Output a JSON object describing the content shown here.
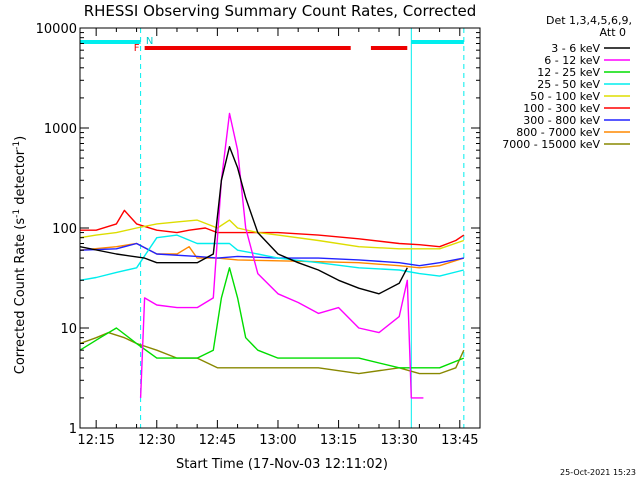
{
  "chart_data": {
    "type": "line",
    "title": "RHESSI Observing Summary Count Rates, Corrected",
    "xlabel": "Start Time (17-Nov-03 12:11:02)",
    "ylabel": "Corrected Count Rate (s",
    "ylabel_sup1": "-1",
    "ylabel_mid": " detector",
    "ylabel_sup2": "-1",
    "ylabel_end": ")",
    "timestamp": "25-Oct-2021 15:23",
    "y_scale": "log",
    "ylim": [
      1,
      10000
    ],
    "xlim": [
      "12:11",
      "13:50"
    ],
    "x_ticks": [
      "12:15",
      "12:30",
      "12:45",
      "13:00",
      "13:15",
      "13:30",
      "13:45"
    ],
    "y_ticks": [
      "1",
      "10",
      "100",
      "1000",
      "10000"
    ],
    "legend_header": [
      "Det 1,3,4,5,6,9,",
      "Att 0"
    ],
    "legend_position": "right",
    "flags": {
      "F_label": "F",
      "N_label": "N",
      "night_intervals": [
        [
          "12:11",
          "12:26"
        ],
        [
          "13:33",
          "13:46"
        ]
      ],
      "flare_intervals": [
        [
          "12:27",
          "13:18"
        ],
        [
          "13:23",
          "13:32"
        ]
      ]
    },
    "series": [
      {
        "name": "3 - 6 keV",
        "color": "#000000",
        "x": [
          "12:11",
          "12:20",
          "12:27",
          "12:30",
          "12:35",
          "12:40",
          "12:44",
          "12:46",
          "12:48",
          "12:50",
          "12:52",
          "12:55",
          "13:00",
          "13:05",
          "13:10",
          "13:15",
          "13:20",
          "13:25",
          "13:30",
          "13:32"
        ],
        "y": [
          65,
          55,
          50,
          45,
          45,
          45,
          55,
          300,
          650,
          400,
          200,
          90,
          55,
          45,
          38,
          30,
          25,
          22,
          28,
          40
        ]
      },
      {
        "name": "6 - 12 keV",
        "color": "#ff00ff",
        "x": [
          "12:26",
          "12:27",
          "12:30",
          "12:35",
          "12:40",
          "12:44",
          "12:46",
          "12:48",
          "12:50",
          "12:52",
          "12:55",
          "13:00",
          "13:05",
          "13:10",
          "13:15",
          "13:20",
          "13:25",
          "13:30",
          "13:32",
          "13:33",
          "13:36"
        ],
        "y": [
          2,
          20,
          17,
          16,
          16,
          20,
          300,
          1400,
          600,
          100,
          35,
          22,
          18,
          14,
          16,
          10,
          9,
          13,
          30,
          2,
          2
        ]
      },
      {
        "name": "12 - 25 keV",
        "color": "#00dd00",
        "x": [
          "12:11",
          "12:16",
          "12:20",
          "12:25",
          "12:30",
          "12:35",
          "12:40",
          "12:44",
          "12:46",
          "12:48",
          "12:50",
          "12:52",
          "12:55",
          "13:00",
          "13:10",
          "13:20",
          "13:30",
          "13:40",
          "13:46"
        ],
        "y": [
          6,
          8,
          10,
          7,
          5,
          5,
          5,
          6,
          20,
          40,
          20,
          8,
          6,
          5,
          5,
          5,
          4,
          4,
          5
        ]
      },
      {
        "name": "25 - 50 keV",
        "color": "#00eeee",
        "x": [
          "12:11",
          "12:15",
          "12:20",
          "12:25",
          "12:30",
          "12:35",
          "12:40",
          "12:45",
          "12:48",
          "12:50",
          "12:55",
          "13:00",
          "13:10",
          "13:20",
          "13:30",
          "13:35",
          "13:40",
          "13:46"
        ],
        "y": [
          30,
          32,
          36,
          40,
          80,
          85,
          70,
          70,
          70,
          60,
          55,
          50,
          45,
          40,
          38,
          35,
          33,
          38
        ]
      },
      {
        "name": "50 - 100 keV",
        "color": "#dddd00",
        "x": [
          "12:11",
          "12:15",
          "12:20",
          "12:25",
          "12:30",
          "12:35",
          "12:40",
          "12:45",
          "12:48",
          "12:50",
          "12:55",
          "13:00",
          "13:10",
          "13:20",
          "13:30",
          "13:35",
          "13:40",
          "13:46"
        ],
        "y": [
          80,
          85,
          90,
          100,
          110,
          115,
          120,
          100,
          120,
          100,
          90,
          85,
          75,
          65,
          62,
          62,
          62,
          75
        ]
      },
      {
        "name": "100 - 300 keV",
        "color": "#ff0000",
        "x": [
          "12:11",
          "12:15",
          "12:20",
          "12:22",
          "12:25",
          "12:30",
          "12:35",
          "12:38",
          "12:42",
          "12:45",
          "12:50",
          "13:00",
          "13:10",
          "13:20",
          "13:30",
          "13:35",
          "13:40",
          "13:44",
          "13:46"
        ],
        "y": [
          95,
          95,
          110,
          150,
          110,
          95,
          90,
          95,
          100,
          90,
          90,
          90,
          85,
          78,
          70,
          68,
          65,
          75,
          85
        ]
      },
      {
        "name": "300 - 800 keV",
        "color": "#2222ff",
        "x": [
          "12:11",
          "12:20",
          "12:25",
          "12:30",
          "12:40",
          "12:45",
          "12:50",
          "13:00",
          "13:10",
          "13:20",
          "13:30",
          "13:35",
          "13:40",
          "13:46"
        ],
        "y": [
          60,
          62,
          70,
          55,
          52,
          50,
          52,
          50,
          50,
          48,
          45,
          42,
          45,
          50
        ]
      },
      {
        "name": "800 - 7000 keV",
        "color": "#ff8800",
        "x": [
          "12:11",
          "12:20",
          "12:25",
          "12:30",
          "12:35",
          "12:38",
          "12:40",
          "12:45",
          "12:50",
          "13:00",
          "13:10",
          "13:20",
          "13:30",
          "13:35",
          "13:40",
          "13:46"
        ],
        "y": [
          60,
          65,
          70,
          55,
          55,
          65,
          50,
          50,
          48,
          47,
          46,
          45,
          42,
          40,
          42,
          50
        ]
      },
      {
        "name": "7000 - 15000 keV",
        "color": "#888800",
        "x": [
          "12:11",
          "12:15",
          "12:18",
          "12:22",
          "12:25",
          "12:30",
          "12:35",
          "12:40",
          "12:45",
          "12:50",
          "13:00",
          "13:10",
          "13:20",
          "13:30",
          "13:35",
          "13:40",
          "13:44",
          "13:46"
        ],
        "y": [
          7,
          8,
          9,
          8,
          7,
          6,
          5,
          5,
          4,
          4,
          4,
          4,
          3.5,
          4,
          3.5,
          3.5,
          4,
          6
        ]
      }
    ]
  }
}
